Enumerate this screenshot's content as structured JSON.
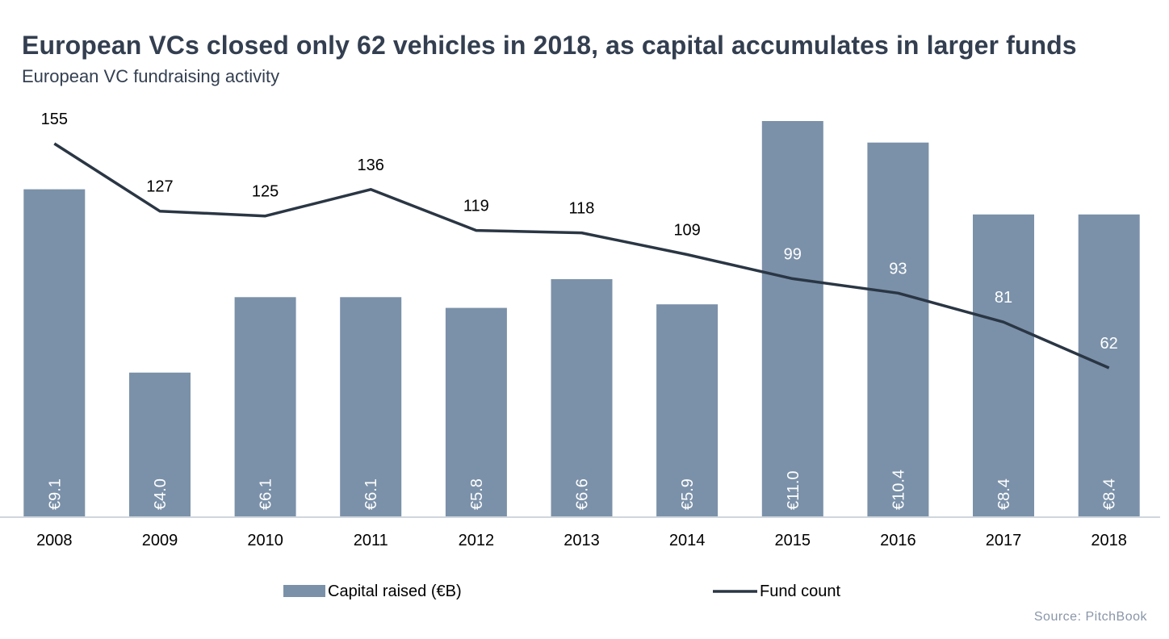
{
  "title": "European VCs closed only 62 vehicles in 2018, as capital accumulates in larger funds",
  "subtitle": "European VC fundraising activity",
  "source": "Source: PitchBook",
  "colors": {
    "bar": "#7b91a9",
    "line": "#2a3644",
    "axis": "#d0d6de",
    "text": "#000000",
    "bar_label": "#ffffff"
  },
  "chart_data": {
    "type": "bar",
    "categories": [
      "2008",
      "2009",
      "2010",
      "2011",
      "2012",
      "2013",
      "2014",
      "2015",
      "2016",
      "2017",
      "2018"
    ],
    "series": [
      {
        "name": "Capital raised (€B)",
        "type": "bar",
        "axis": "left",
        "values": [
          9.1,
          4.0,
          6.1,
          6.1,
          5.8,
          6.6,
          5.9,
          11.0,
          10.4,
          8.4,
          8.4
        ],
        "labels": [
          "€9.1",
          "€4.0",
          "€6.1",
          "€6.1",
          "€5.8",
          "€6.6",
          "€5.9",
          "€11.0",
          "€10.4",
          "€8.4",
          "€8.4"
        ]
      },
      {
        "name": "Fund count",
        "type": "line",
        "axis": "right",
        "values": [
          155,
          127,
          125,
          136,
          119,
          118,
          109,
          99,
          93,
          81,
          62
        ],
        "labels": [
          "155",
          "127",
          "125",
          "136",
          "119",
          "118",
          "109",
          "99",
          "93",
          "81",
          "62"
        ]
      }
    ],
    "left_axis_range": [
      0,
      11.0
    ],
    "right_axis_range": [
      0,
      155
    ],
    "grid": false,
    "legend_position": "bottom"
  }
}
